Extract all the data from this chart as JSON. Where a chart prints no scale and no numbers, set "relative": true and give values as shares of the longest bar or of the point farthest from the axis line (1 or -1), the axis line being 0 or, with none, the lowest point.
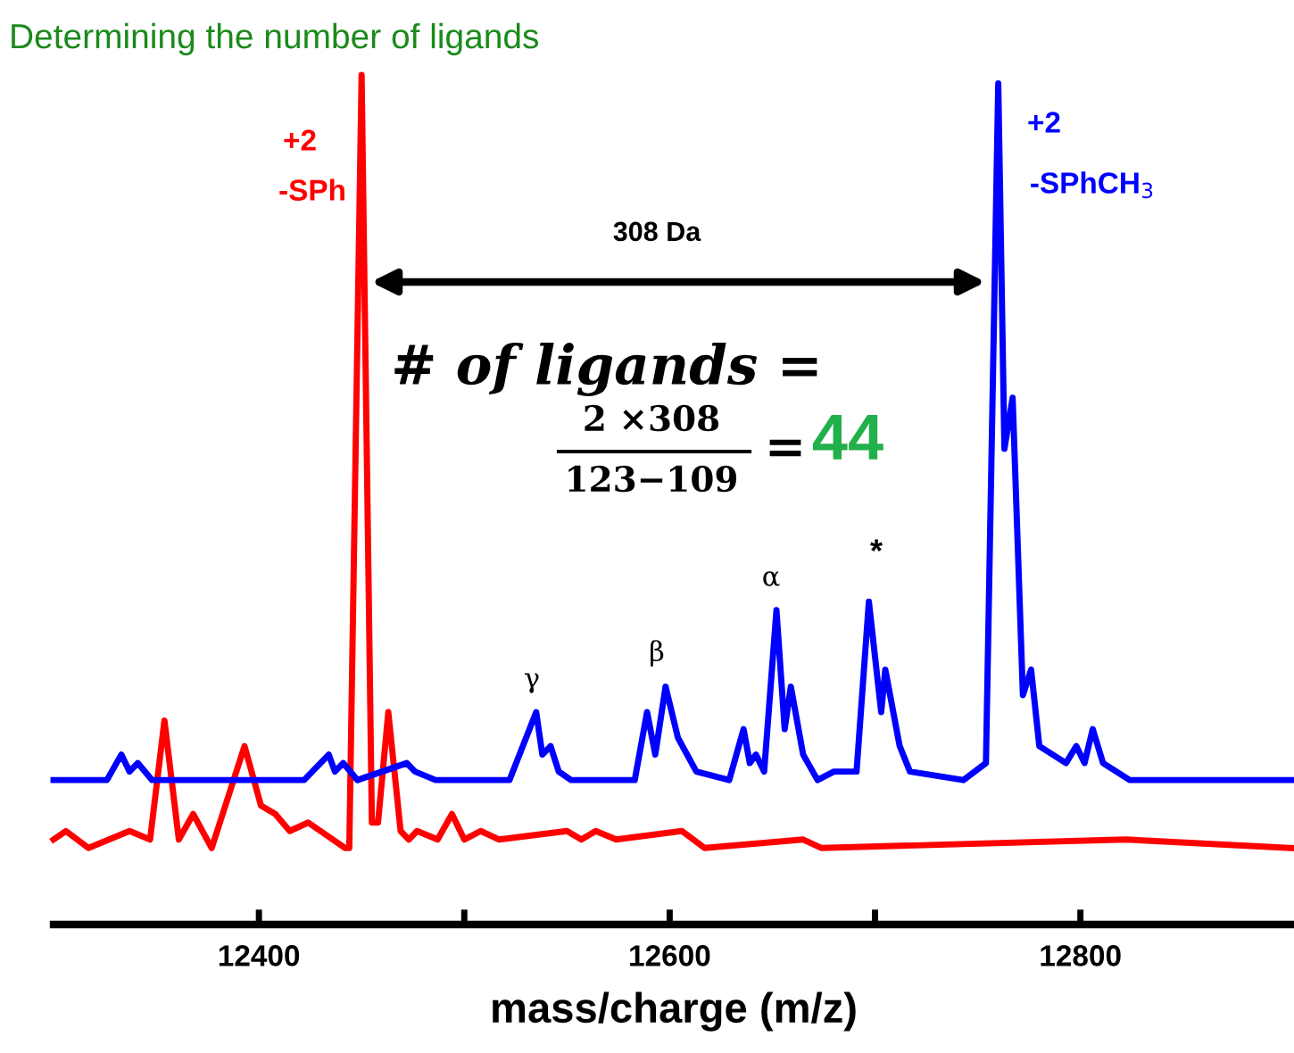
{
  "chart_data": {
    "type": "line",
    "title": "Determining the number of ligands",
    "xlabel": "mass/charge (m/z)",
    "relative": true,
    "grid": false,
    "legend": false,
    "marker": "none",
    "line_style": "solid",
    "xlim": [
      12300,
      12904
    ],
    "xticks": [
      12400,
      {
        "value": 12500,
        "label": null
      },
      12600,
      {
        "value": 12700,
        "label": null
      },
      12800
    ],
    "tick_labels": "x",
    "series": [
      {
        "color": "#ff0000",
        "x": [
          12300,
          12306,
          12317,
          12337,
          12347,
          12354,
          12361,
          12368,
          12377,
          12393,
          12401,
          12408,
          12415,
          12424,
          12442,
          12444,
          12450,
          12455,
          12458,
          12463,
          12469,
          12473,
          12477,
          12487,
          12494,
          12500,
          12508,
          12517,
          12550,
          12557,
          12564,
          12574,
          12606,
          12617,
          12665,
          12674,
          12822,
          12903
        ],
        "values": [
          0.1,
          0.11,
          0.09,
          0.11,
          0.1,
          0.24,
          0.1,
          0.13,
          0.09,
          0.21,
          0.14,
          0.13,
          0.11,
          0.12,
          0.09,
          0.09,
          1.0,
          0.12,
          0.12,
          0.25,
          0.11,
          0.1,
          0.11,
          0.1,
          0.13,
          0.1,
          0.11,
          0.1,
          0.11,
          0.1,
          0.11,
          0.1,
          0.11,
          0.09,
          0.1,
          0.09,
          0.1,
          0.09
        ]
      },
      {
        "color": "#0000ff",
        "x": [
          12300,
          12326,
          12333,
          12337,
          12341,
          12348,
          12371,
          12422,
          12434,
          12437,
          12441,
          12448,
          12472,
          12476,
          12486,
          12522,
          12535,
          12538,
          12542,
          12546,
          12552,
          12583,
          12589,
          12593,
          12598,
          12604,
          12613,
          12629,
          12636,
          12639,
          12642,
          12646,
          12652,
          12656,
          12659,
          12665,
          12672,
          12680,
          12691,
          12697,
          12703,
          12705,
          12712,
          12717,
          12743,
          12754,
          12760,
          12763,
          12767,
          12772,
          12776,
          12780,
          12793,
          12798,
          12802,
          12806,
          12811,
          12824,
          12842,
          12885,
          12903
        ],
        "values": [
          0.17,
          0.17,
          0.2,
          0.18,
          0.19,
          0.17,
          0.17,
          0.17,
          0.2,
          0.18,
          0.19,
          0.17,
          0.19,
          0.18,
          0.17,
          0.17,
          0.25,
          0.2,
          0.21,
          0.18,
          0.17,
          0.17,
          0.25,
          0.2,
          0.28,
          0.22,
          0.18,
          0.17,
          0.23,
          0.19,
          0.2,
          0.18,
          0.37,
          0.23,
          0.28,
          0.2,
          0.17,
          0.18,
          0.18,
          0.38,
          0.25,
          0.3,
          0.21,
          0.18,
          0.17,
          0.19,
          0.99,
          0.56,
          0.62,
          0.27,
          0.3,
          0.21,
          0.19,
          0.21,
          0.19,
          0.23,
          0.19,
          0.17,
          0.17,
          0.17,
          0.17
        ]
      }
    ],
    "annotations": [
      "+2",
      "-SPh",
      "+2",
      "-SPhCH$_{3}$",
      "γ",
      "β",
      "α",
      "*",
      "308 Da",
      "# of ligands =",
      "2 ×308",
      "123−109",
      "=",
      "44"
    ]
  }
}
